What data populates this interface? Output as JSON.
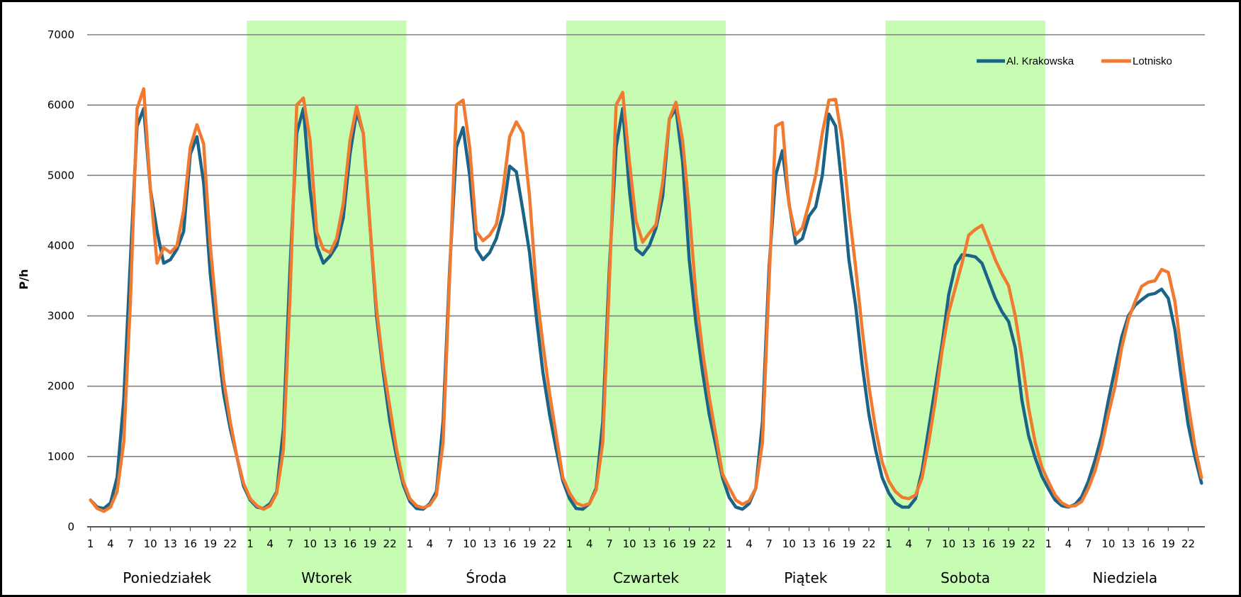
{
  "chart_data": {
    "type": "line",
    "title": "",
    "xlabel": "",
    "ylabel": "P/h",
    "ylim": [
      0,
      7000
    ],
    "yticks": [
      "0",
      "1000",
      "2000",
      "3000",
      "4000",
      "5000",
      "6000",
      "7000"
    ],
    "xtick_labels": [
      "1",
      "4",
      "7",
      "10",
      "13",
      "16",
      "19",
      "22"
    ],
    "grid": true,
    "legend_position": "top-right",
    "day_labels": [
      "Poniedziałek",
      "Wtorek",
      "Środa",
      "Czwartek",
      "Piątek",
      "Sobota",
      "Niedziela"
    ],
    "shaded_days": [
      1,
      3,
      5
    ],
    "colors": {
      "shade": "#c6fdb2",
      "grid": "#808080",
      "series": [
        "#1b6488",
        "#f07a30"
      ]
    },
    "hours_per_day": 24,
    "series": [
      {
        "name": "Al. Krakowska",
        "values": [
          380,
          280,
          260,
          340,
          700,
          1800,
          3800,
          5700,
          5950,
          4800,
          4200,
          3750,
          3800,
          3950,
          4200,
          5300,
          5550,
          4900,
          3600,
          2700,
          1900,
          1400,
          1000,
          580,
          380,
          280,
          260,
          330,
          500,
          1400,
          3700,
          5600,
          5950,
          4800,
          4000,
          3750,
          3850,
          4000,
          4400,
          5300,
          5900,
          5600,
          4300,
          3000,
          2200,
          1500,
          1000,
          600,
          360,
          260,
          250,
          330,
          500,
          1500,
          3700,
          5400,
          5680,
          5000,
          3950,
          3800,
          3900,
          4100,
          4450,
          5130,
          5050,
          4500,
          3900,
          3000,
          2200,
          1600,
          1100,
          650,
          400,
          260,
          250,
          330,
          550,
          1500,
          3700,
          5400,
          5950,
          4800,
          3950,
          3870,
          4000,
          4250,
          4700,
          5800,
          5950,
          5200,
          3800,
          2900,
          2200,
          1600,
          1150,
          700,
          420,
          280,
          250,
          330,
          550,
          1500,
          3700,
          5000,
          5350,
          4600,
          4030,
          4100,
          4420,
          4550,
          5000,
          5870,
          5700,
          4800,
          3800,
          3150,
          2300,
          1600,
          1100,
          700,
          480,
          340,
          280,
          280,
          400,
          800,
          1400,
          2000,
          2600,
          3300,
          3720,
          3870,
          3860,
          3840,
          3750,
          3500,
          3250,
          3060,
          2920,
          2550,
          1800,
          1300,
          980,
          720,
          540,
          380,
          300,
          280,
          320,
          430,
          650,
          950,
          1300,
          1800,
          2250,
          2700,
          3000,
          3150,
          3230,
          3300,
          3320,
          3380,
          3250,
          2800,
          2100,
          1450,
          1000,
          620
        ]
      },
      {
        "name": "Lotnisko",
        "values": [
          380,
          260,
          220,
          280,
          500,
          1200,
          3200,
          5950,
          6230,
          4800,
          3750,
          3970,
          3900,
          4000,
          4500,
          5400,
          5720,
          5450,
          4000,
          3000,
          2100,
          1500,
          1000,
          620,
          400,
          300,
          250,
          300,
          480,
          1100,
          3300,
          6000,
          6100,
          5500,
          4200,
          3950,
          3900,
          4100,
          4600,
          5500,
          5980,
          5600,
          4300,
          3100,
          2300,
          1700,
          1100,
          650,
          400,
          300,
          270,
          310,
          450,
          1200,
          3600,
          6000,
          6070,
          5400,
          4200,
          4070,
          4150,
          4300,
          4800,
          5550,
          5760,
          5600,
          4700,
          3400,
          2600,
          1900,
          1300,
          700,
          480,
          340,
          300,
          330,
          520,
          1200,
          3500,
          6000,
          6180,
          5200,
          4350,
          4050,
          4180,
          4300,
          4900,
          5800,
          6040,
          5500,
          4500,
          3300,
          2500,
          1850,
          1300,
          750,
          560,
          380,
          320,
          370,
          550,
          1200,
          3500,
          5700,
          5750,
          4580,
          4150,
          4250,
          4600,
          5000,
          5600,
          6070,
          6080,
          5500,
          4500,
          3700,
          2800,
          2000,
          1400,
          920,
          650,
          500,
          420,
          400,
          450,
          700,
          1200,
          1800,
          2500,
          3050,
          3400,
          3750,
          4150,
          4230,
          4290,
          4050,
          3800,
          3600,
          3430,
          3000,
          2400,
          1700,
          1200,
          850,
          640,
          450,
          340,
          290,
          300,
          360,
          550,
          800,
          1150,
          1600,
          2000,
          2550,
          2950,
          3200,
          3420,
          3480,
          3500,
          3660,
          3620,
          3200,
          2450,
          1750,
          1150,
          700
        ]
      }
    ]
  }
}
